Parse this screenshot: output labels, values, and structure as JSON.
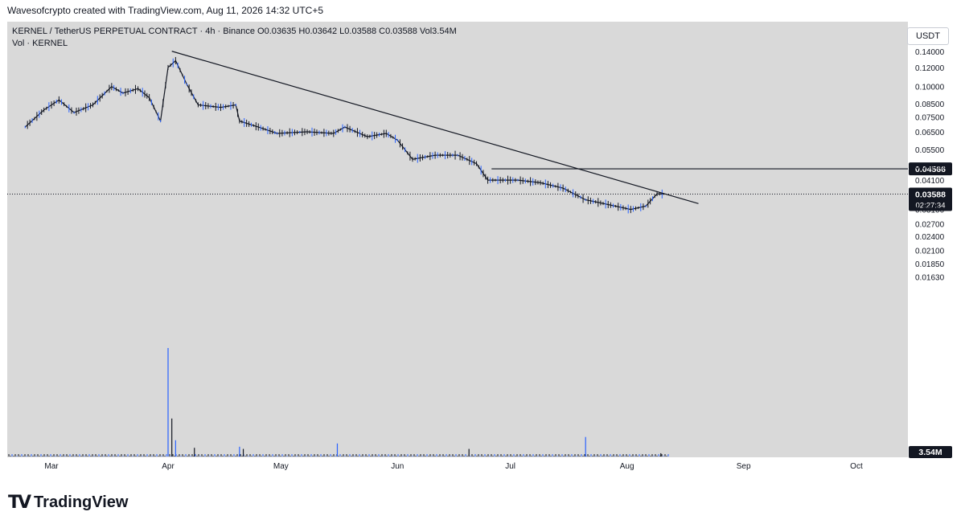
{
  "header": {
    "attribution": "Wavesofcrypto created with TradingView.com, Aug 11, 2026 14:32 UTC+5"
  },
  "legend": {
    "line1": "KERNEL / TetherUS PERPETUAL CONTRACT · 4h · Binance  O0.03635  H0.03642  L0.03588  C0.03588  Vol3.54M",
    "line2": "Vol · KERNEL"
  },
  "currency_button": "USDT",
  "footer": {
    "brand": "TradingView"
  },
  "colors": {
    "up": "#2962ff",
    "down": "#131722",
    "background": "#d9d9d9",
    "tag_bg": "#131722"
  },
  "chart_data": {
    "type": "line",
    "title": "KERNEL / TetherUS PERPETUAL CONTRACT · 4h · Binance",
    "y_ticks": [
      "0.14000",
      "0.12000",
      "0.10000",
      "0.08500",
      "0.07500",
      "0.06500",
      "0.05500",
      "0.04700",
      "0.04100",
      "0.03100",
      "0.02700",
      "0.02400",
      "0.02100",
      "0.01850",
      "0.01630"
    ],
    "x_ticks": [
      "Mar",
      "Apr",
      "May",
      "Jun",
      "Jul",
      "Aug",
      "Sep",
      "Oct"
    ],
    "price_path": [
      {
        "x": "2026-02-22",
        "y": 0.068
      },
      {
        "x": "2026-02-27",
        "y": 0.08
      },
      {
        "x": "2026-03-03",
        "y": 0.088
      },
      {
        "x": "2026-03-07",
        "y": 0.078
      },
      {
        "x": "2026-03-12",
        "y": 0.084
      },
      {
        "x": "2026-03-17",
        "y": 0.1
      },
      {
        "x": "2026-03-20",
        "y": 0.094
      },
      {
        "x": "2026-03-24",
        "y": 0.098
      },
      {
        "x": "2026-03-27",
        "y": 0.09
      },
      {
        "x": "2026-03-30",
        "y": 0.072
      },
      {
        "x": "2026-04-01",
        "y": 0.12
      },
      {
        "x": "2026-04-03",
        "y": 0.128
      },
      {
        "x": "2026-04-06",
        "y": 0.102
      },
      {
        "x": "2026-04-09",
        "y": 0.084
      },
      {
        "x": "2026-04-15",
        "y": 0.082
      },
      {
        "x": "2026-04-19",
        "y": 0.084
      },
      {
        "x": "2026-04-20",
        "y": 0.072
      },
      {
        "x": "2026-04-25",
        "y": 0.068
      },
      {
        "x": "2026-04-30",
        "y": 0.064
      },
      {
        "x": "2026-05-08",
        "y": 0.065
      },
      {
        "x": "2026-05-15",
        "y": 0.064
      },
      {
        "x": "2026-05-18",
        "y": 0.068
      },
      {
        "x": "2026-05-24",
        "y": 0.062
      },
      {
        "x": "2026-05-29",
        "y": 0.064
      },
      {
        "x": "2026-06-01",
        "y": 0.06
      },
      {
        "x": "2026-06-05",
        "y": 0.05
      },
      {
        "x": "2026-06-11",
        "y": 0.052
      },
      {
        "x": "2026-06-17",
        "y": 0.052
      },
      {
        "x": "2026-06-22",
        "y": 0.048
      },
      {
        "x": "2026-06-25",
        "y": 0.041
      },
      {
        "x": "2026-07-03",
        "y": 0.041
      },
      {
        "x": "2026-07-09",
        "y": 0.04
      },
      {
        "x": "2026-07-15",
        "y": 0.038
      },
      {
        "x": "2026-07-21",
        "y": 0.034
      },
      {
        "x": "2026-07-25",
        "y": 0.033
      },
      {
        "x": "2026-08-02",
        "y": 0.031
      },
      {
        "x": "2026-08-06",
        "y": 0.032
      },
      {
        "x": "2026-08-09",
        "y": 0.036
      },
      {
        "x": "2026-08-11",
        "y": 0.03588
      }
    ],
    "trendline": [
      {
        "x": "2026-04-02",
        "y": 0.14
      },
      {
        "x": "2026-08-20",
        "y": 0.0328
      }
    ],
    "horizontal_level": {
      "y": 0.04566,
      "from": "2026-06-26",
      "label": "0.04566"
    },
    "last_price": {
      "y": 0.03588,
      "label": "0.03588",
      "countdown": "02:27:34"
    },
    "volume": {
      "label": "3.54M",
      "spikes": [
        {
          "x": "2026-04-01",
          "v": 1.0
        },
        {
          "x": "2026-04-02",
          "v": 0.35
        },
        {
          "x": "2026-04-03",
          "v": 0.15
        },
        {
          "x": "2026-04-08",
          "v": 0.08
        },
        {
          "x": "2026-04-20",
          "v": 0.09
        },
        {
          "x": "2026-04-21",
          "v": 0.07
        },
        {
          "x": "2026-05-16",
          "v": 0.12
        },
        {
          "x": "2026-06-20",
          "v": 0.07
        },
        {
          "x": "2026-07-21",
          "v": 0.18
        },
        {
          "x": "2026-08-10",
          "v": 0.03
        }
      ]
    }
  }
}
